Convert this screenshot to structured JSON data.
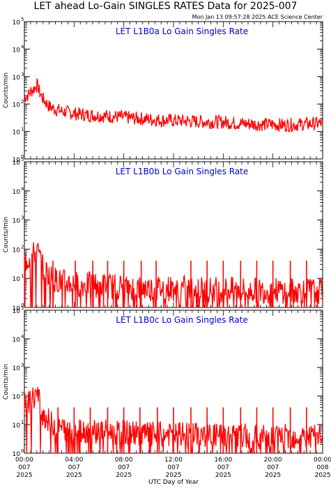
{
  "title": "LET ahead Lo-Gain SINGLES RATES Data for 2025-007",
  "timestamp": "Mon Jan 13 09:57:28 2025 ACE Science Center",
  "colors": {
    "series": "#ff0000",
    "panel_title": "#0000cc",
    "axes": "#000000"
  },
  "chart_data": [
    {
      "type": "line",
      "title": "LET L1B0a Lo Gain Singles Rate",
      "ylabel": "Counts/min",
      "yscale": "log",
      "ylim": [
        1,
        100000
      ],
      "xlim": [
        0,
        24
      ],
      "y_ticks": [
        {
          "value": 1,
          "label": "10",
          "exp": "0"
        },
        {
          "value": 10,
          "label": "10",
          "exp": "1"
        },
        {
          "value": 100,
          "label": "10",
          "exp": "2"
        },
        {
          "value": 1000,
          "label": "10",
          "exp": "3"
        },
        {
          "value": 10000,
          "label": "10",
          "exp": "4"
        },
        {
          "value": 100000,
          "label": "10",
          "exp": "5"
        }
      ],
      "series": [
        {
          "color": "#ff0000",
          "x": [
            0,
            0.25,
            0.5,
            0.75,
            1.0,
            1.25,
            1.5,
            1.75,
            2.0,
            2.5,
            3.0,
            3.5,
            4.0,
            5.0,
            6.0,
            7.0,
            8.0,
            9.0,
            10.0,
            11.0,
            12.0,
            13.0,
            14.0,
            15.0,
            16.0,
            17.0,
            18.0,
            19.0,
            20.0,
            21.0,
            22.0,
            23.0,
            24.0
          ],
          "y": [
            180,
            200,
            280,
            350,
            500,
            250,
            150,
            110,
            80,
            65,
            55,
            50,
            45,
            40,
            38,
            35,
            33,
            30,
            28,
            26,
            25,
            24,
            23,
            22,
            22,
            20,
            19,
            18,
            18,
            17,
            18,
            19,
            20
          ]
        }
      ]
    },
    {
      "type": "line",
      "title": "LET L1B0b Lo Gain Singles Rate",
      "ylabel": "Counts/min",
      "yscale": "log",
      "ylim": [
        1,
        100000
      ],
      "xlim": [
        0,
        24
      ],
      "y_ticks": [
        {
          "value": 1,
          "label": "10",
          "exp": "0"
        },
        {
          "value": 10,
          "label": "10",
          "exp": "1"
        },
        {
          "value": 100,
          "label": "10",
          "exp": "2"
        },
        {
          "value": 1000,
          "label": "10",
          "exp": "3"
        },
        {
          "value": 10000,
          "label": "10",
          "exp": "4"
        },
        {
          "value": 100000,
          "label": "10",
          "exp": "5"
        }
      ],
      "series": [
        {
          "color": "#ff0000",
          "x": [
            0,
            0.25,
            0.5,
            0.75,
            1.0,
            1.25,
            1.5,
            2.0,
            2.5,
            3.0,
            4.0,
            5.0,
            6.0,
            7.0,
            8.0,
            9.0,
            10.0,
            11.0,
            12.0,
            13.0,
            14.0,
            15.0,
            16.0,
            17.0,
            18.0,
            19.0,
            20.0,
            21.0,
            22.0,
            23.0,
            24.0
          ],
          "y": [
            25,
            30,
            35,
            45,
            60,
            30,
            15,
            8,
            6,
            5,
            4.5,
            4,
            4,
            3.5,
            3.5,
            3.2,
            3,
            3,
            3,
            3,
            2.8,
            2.8,
            2.8,
            2.6,
            2.6,
            2.5,
            2.5,
            2.5,
            2.5,
            2.5,
            2.5
          ]
        }
      ],
      "spikes": {
        "x": [
          2.3,
          4.1,
          5.5,
          6.7,
          8.0,
          9.4,
          10.6,
          13.4,
          14.7,
          16.0,
          17.4,
          18.7,
          20.0,
          21.4,
          22.7
        ],
        "y": 40
      }
    },
    {
      "type": "line",
      "title": "LET L1B0c Lo Gain Singles Rate",
      "ylabel": "Counts/min",
      "yscale": "log",
      "ylim": [
        1,
        100000
      ],
      "xlim": [
        0,
        24
      ],
      "y_ticks": [
        {
          "value": 1,
          "label": "10",
          "exp": "0"
        },
        {
          "value": 10,
          "label": "10",
          "exp": "1"
        },
        {
          "value": 100,
          "label": "10",
          "exp": "2"
        },
        {
          "value": 1000,
          "label": "10",
          "exp": "3"
        },
        {
          "value": 10000,
          "label": "10",
          "exp": "4"
        },
        {
          "value": 100000,
          "label": "10",
          "exp": "5"
        }
      ],
      "series": [
        {
          "color": "#ff0000",
          "x": [
            0,
            0.25,
            0.5,
            0.75,
            1.0,
            1.25,
            1.5,
            2.0,
            2.5,
            3.0,
            4.0,
            5.0,
            6.0,
            7.0,
            8.0,
            9.0,
            10.0,
            11.0,
            12.0,
            13.0,
            14.0,
            15.0,
            16.0,
            17.0,
            18.0,
            19.0,
            20.0,
            21.0,
            22.0,
            23.0,
            24.0
          ],
          "y": [
            30,
            35,
            45,
            60,
            75,
            35,
            15,
            8,
            6,
            5,
            4.5,
            4,
            4,
            3.5,
            3.5,
            3.2,
            3,
            3,
            3,
            3,
            2.8,
            2.8,
            2.8,
            2.6,
            2.6,
            2.5,
            2.5,
            2.5,
            2.5,
            2.5,
            2.5
          ]
        }
      ],
      "spikes": {
        "x": [
          2.7,
          4.0,
          5.3,
          6.7,
          8.0,
          9.3,
          10.7,
          12.0,
          13.4,
          14.7,
          16.0,
          17.4,
          18.7,
          20.0,
          21.4,
          22.7
        ],
        "y": 40
      }
    }
  ],
  "x_ticks": [
    {
      "hour": 0,
      "time": "00:00",
      "day": "007",
      "year": "2025"
    },
    {
      "hour": 4,
      "time": "04:00",
      "day": "007",
      "year": "2025"
    },
    {
      "hour": 8,
      "time": "08:00",
      "day": "007",
      "year": "2025"
    },
    {
      "hour": 12,
      "time": "12:00",
      "day": "007",
      "year": "2025"
    },
    {
      "hour": 16,
      "time": "16:00",
      "day": "007",
      "year": "2025"
    },
    {
      "hour": 20,
      "time": "20:00",
      "day": "007",
      "year": "2025"
    },
    {
      "hour": 24,
      "time": "00:00",
      "day": "008",
      "year": "2025"
    }
  ],
  "xlabel": "UTC Day of Year"
}
